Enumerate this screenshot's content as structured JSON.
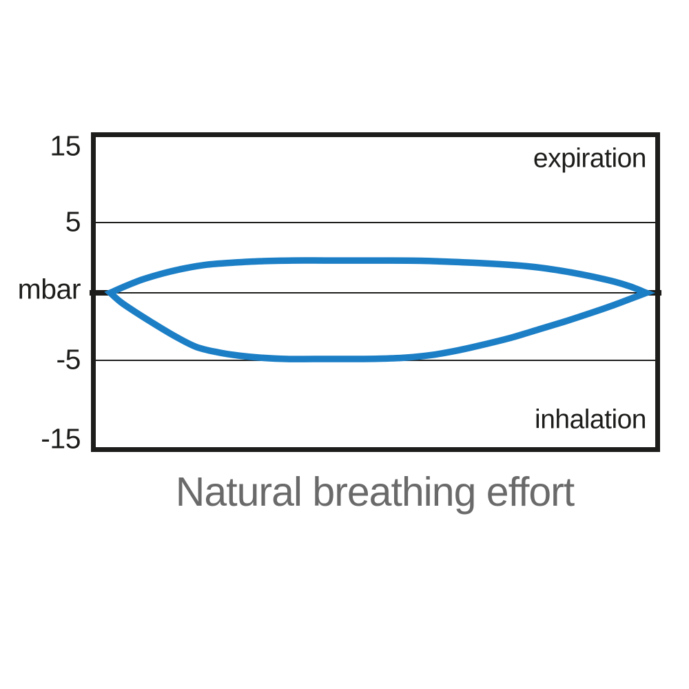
{
  "chart_data": {
    "type": "line",
    "title": "Natural breathing effort",
    "unit": "mbar",
    "ylabel": "mbar",
    "ylim": [
      -15,
      15
    ],
    "ytick_labels": [
      "15",
      "5",
      "mbar",
      "-5",
      "-15"
    ],
    "ytick_values": [
      15,
      5,
      0,
      -5,
      -15
    ],
    "gridline_values": [
      5,
      0,
      -5
    ],
    "region_labels": [
      "expiration",
      "inhalation"
    ],
    "legend": "none",
    "x_axis_ticks": "none (x = breath cycle, percent)",
    "colors": {
      "curve": "#1c7fc6",
      "border": "#1d1d1b",
      "grid": "#1d1d1b",
      "text": "#1d1d1b",
      "title": "#6a6a6a",
      "background": "#ffffff"
    },
    "loop_closed": true,
    "series": [
      {
        "name": "expiration branch (upper, pressure above 0 mbar)",
        "x_percent": [
          0,
          3,
          6,
          10,
          14,
          18,
          23,
          28,
          34,
          40,
          46,
          52,
          58,
          64,
          70,
          76,
          81,
          86,
          90,
          94,
          97,
          100
        ],
        "mbar": [
          0,
          0.5,
          0.95,
          1.4,
          1.75,
          2.0,
          2.15,
          2.25,
          2.3,
          2.3,
          2.3,
          2.3,
          2.28,
          2.2,
          2.1,
          1.95,
          1.75,
          1.45,
          1.15,
          0.8,
          0.45,
          0
        ]
      },
      {
        "name": "inhalation branch (lower, pressure below 0 mbar)",
        "x_percent": [
          0,
          2,
          5,
          8,
          12,
          16,
          20,
          24,
          28,
          33,
          38,
          44,
          50,
          55,
          60,
          65,
          70,
          75,
          80,
          85,
          90,
          94,
          97,
          100
        ],
        "mbar": [
          0,
          -0.7,
          -1.5,
          -2.25,
          -3.2,
          -4.0,
          -4.4,
          -4.65,
          -4.8,
          -4.9,
          -4.9,
          -4.9,
          -4.88,
          -4.8,
          -4.6,
          -4.25,
          -3.8,
          -3.3,
          -2.7,
          -2.1,
          -1.45,
          -0.9,
          -0.45,
          0
        ]
      }
    ]
  }
}
